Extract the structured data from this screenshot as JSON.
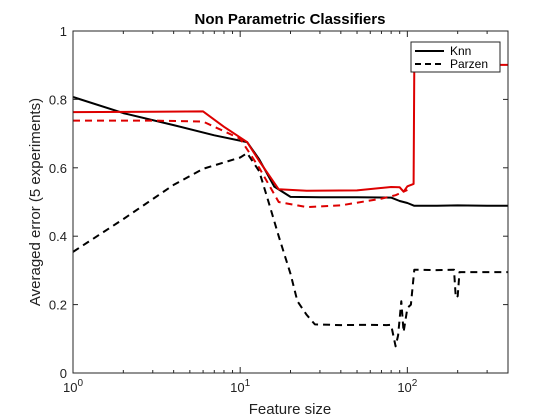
{
  "chart_data": {
    "type": "line",
    "title": "Non Parametric Classifiers",
    "xlabel": "Feature size",
    "ylabel": "Averaged error (5 experiments)",
    "x_scale": "log",
    "xlim": [
      1,
      400
    ],
    "ylim": [
      0,
      1
    ],
    "grid": false,
    "legend_position": "top-right",
    "x_ticks": [
      {
        "value": 1,
        "base": "10",
        "exp": "0"
      },
      {
        "value": 10,
        "base": "10",
        "exp": "1"
      },
      {
        "value": 100,
        "base": "10",
        "exp": "2"
      }
    ],
    "y_ticks": [
      {
        "value": 0,
        "label": "0"
      },
      {
        "value": 0.2,
        "label": "0.2"
      },
      {
        "value": 0.4,
        "label": "0.4"
      },
      {
        "value": 0.6,
        "label": "0.6"
      },
      {
        "value": 0.8,
        "label": "0.8"
      },
      {
        "value": 1,
        "label": "1"
      }
    ],
    "legend": [
      {
        "label": "Knn",
        "color": "#000000",
        "dash": "solid"
      },
      {
        "label": "Parzen",
        "color": "#000000",
        "dash": "dashed"
      }
    ],
    "series": [
      {
        "color": "#000000",
        "dash": "solid",
        "points": [
          [
            1,
            0.807
          ],
          [
            2,
            0.76
          ],
          [
            4,
            0.725
          ],
          [
            7,
            0.695
          ],
          [
            11,
            0.675
          ],
          [
            13,
            0.625
          ],
          [
            16,
            0.545
          ],
          [
            20,
            0.515
          ],
          [
            30,
            0.514
          ],
          [
            50,
            0.514
          ],
          [
            80,
            0.513
          ],
          [
            90,
            0.503
          ],
          [
            100,
            0.497
          ],
          [
            110,
            0.489
          ],
          [
            150,
            0.489
          ],
          [
            200,
            0.49
          ],
          [
            300,
            0.489
          ],
          [
            400,
            0.489
          ]
        ]
      },
      {
        "color": "#000000",
        "dash": "dashed",
        "points": [
          [
            1,
            0.354
          ],
          [
            2,
            0.45
          ],
          [
            4,
            0.55
          ],
          [
            6,
            0.597
          ],
          [
            10,
            0.63
          ],
          [
            11,
            0.643
          ],
          [
            13,
            0.59
          ],
          [
            15,
            0.49
          ],
          [
            17,
            0.4
          ],
          [
            20,
            0.29
          ],
          [
            22,
            0.21
          ],
          [
            25,
            0.17
          ],
          [
            28,
            0.142
          ],
          [
            40,
            0.14
          ],
          [
            60,
            0.141
          ],
          [
            75,
            0.14
          ],
          [
            80,
            0.141
          ],
          [
            85,
            0.078
          ],
          [
            88,
            0.11
          ],
          [
            92,
            0.21
          ],
          [
            95,
            0.12
          ],
          [
            100,
            0.19
          ],
          [
            105,
            0.2
          ],
          [
            110,
            0.302
          ],
          [
            150,
            0.301
          ],
          [
            190,
            0.302
          ],
          [
            195,
            0.22
          ],
          [
            200,
            0.225
          ],
          [
            205,
            0.295
          ],
          [
            400,
            0.295
          ]
        ]
      },
      {
        "color": "#dd0000",
        "dash": "solid",
        "points": [
          [
            1,
            0.763
          ],
          [
            3,
            0.764
          ],
          [
            6,
            0.765
          ],
          [
            8,
            0.72
          ],
          [
            11,
            0.675
          ],
          [
            13,
            0.62
          ],
          [
            17,
            0.537
          ],
          [
            25,
            0.533
          ],
          [
            50,
            0.534
          ],
          [
            80,
            0.544
          ],
          [
            90,
            0.543
          ],
          [
            95,
            0.53
          ],
          [
            100,
            0.546
          ],
          [
            109,
            0.553
          ],
          [
            110,
            0.901
          ],
          [
            400,
            0.901
          ]
        ]
      },
      {
        "color": "#dd0000",
        "dash": "dashed",
        "points": [
          [
            1,
            0.738
          ],
          [
            3,
            0.738
          ],
          [
            6,
            0.735
          ],
          [
            10,
            0.685
          ],
          [
            13,
            0.6
          ],
          [
            17,
            0.5
          ],
          [
            25,
            0.485
          ],
          [
            40,
            0.49
          ],
          [
            70,
            0.51
          ],
          [
            85,
            0.52
          ],
          [
            100,
            0.535
          ]
        ]
      }
    ]
  }
}
